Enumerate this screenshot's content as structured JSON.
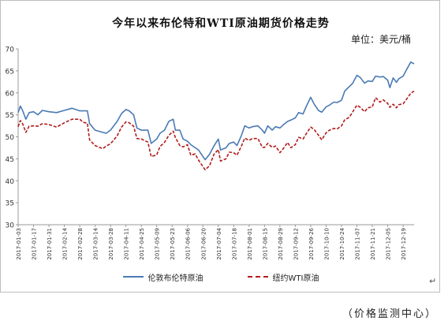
{
  "chart_data": {
    "type": "line",
    "title": "今年以来布伦特和WTI原油期货价格走势",
    "unit": "单位：美元/桶",
    "ylim": [
      30,
      70
    ],
    "yticks": [
      30,
      35,
      40,
      45,
      50,
      55,
      60,
      65,
      70
    ],
    "xlim": [
      "2017-01-03",
      "2017-12-29"
    ],
    "xticks": [
      "2017-01-03",
      "2017-01-17",
      "2017-01-31",
      "2017-02-14",
      "2017-02-28",
      "2017-03-14",
      "2017-03-28",
      "2017-04-11",
      "2017-04-25",
      "2017-05-09",
      "2017-05-23",
      "2017-06-06",
      "2017-06-20",
      "2017-07-04",
      "2017-07-18",
      "2017-08-01",
      "2017-08-15",
      "2017-08-29",
      "2017-09-12",
      "2017-09-26",
      "2017-10-10",
      "2017-10-24",
      "2017-11-07",
      "2017-11-21",
      "2017-12-05",
      "2017-12-19"
    ],
    "legend_position": "bottom",
    "series": [
      {
        "name": "伦敦布伦特原油",
        "color": "#4a7ab5",
        "style": "solid",
        "points": [
          [
            "2017-01-03",
            55.5
          ],
          [
            "2017-01-05",
            57.0
          ],
          [
            "2017-01-07",
            56.0
          ],
          [
            "2017-01-10",
            54.0
          ],
          [
            "2017-01-13",
            55.5
          ],
          [
            "2017-01-17",
            55.7
          ],
          [
            "2017-01-21",
            55.0
          ],
          [
            "2017-01-25",
            56.0
          ],
          [
            "2017-01-31",
            55.7
          ],
          [
            "2017-02-07",
            55.5
          ],
          [
            "2017-02-14",
            56.0
          ],
          [
            "2017-02-21",
            56.5
          ],
          [
            "2017-02-28",
            55.9
          ],
          [
            "2017-03-03",
            55.9
          ],
          [
            "2017-03-07",
            55.9
          ],
          [
            "2017-03-09",
            53.0
          ],
          [
            "2017-03-14",
            51.5
          ],
          [
            "2017-03-21",
            51.0
          ],
          [
            "2017-03-24",
            50.8
          ],
          [
            "2017-03-28",
            51.5
          ],
          [
            "2017-04-03",
            53.5
          ],
          [
            "2017-04-07",
            55.3
          ],
          [
            "2017-04-11",
            56.2
          ],
          [
            "2017-04-14",
            55.9
          ],
          [
            "2017-04-18",
            55.0
          ],
          [
            "2017-04-21",
            52.0
          ],
          [
            "2017-04-25",
            51.5
          ],
          [
            "2017-05-01",
            51.5
          ],
          [
            "2017-05-04",
            48.5
          ],
          [
            "2017-05-09",
            49.5
          ],
          [
            "2017-05-12",
            50.8
          ],
          [
            "2017-05-16",
            51.5
          ],
          [
            "2017-05-20",
            53.5
          ],
          [
            "2017-05-24",
            54.0
          ],
          [
            "2017-05-26",
            51.5
          ],
          [
            "2017-05-30",
            51.5
          ],
          [
            "2017-06-02",
            49.5
          ],
          [
            "2017-06-06",
            49.0
          ],
          [
            "2017-06-09",
            48.2
          ],
          [
            "2017-06-13",
            47.5
          ],
          [
            "2017-06-16",
            47.0
          ],
          [
            "2017-06-20",
            45.5
          ],
          [
            "2017-06-22",
            44.8
          ],
          [
            "2017-06-26",
            46.0
          ],
          [
            "2017-06-30",
            47.9
          ],
          [
            "2017-07-04",
            49.5
          ],
          [
            "2017-07-06",
            47.0
          ],
          [
            "2017-07-11",
            47.5
          ],
          [
            "2017-07-14",
            48.5
          ],
          [
            "2017-07-18",
            48.8
          ],
          [
            "2017-07-21",
            48.0
          ],
          [
            "2017-07-25",
            50.3
          ],
          [
            "2017-07-28",
            52.5
          ],
          [
            "2017-08-01",
            52.0
          ],
          [
            "2017-08-04",
            52.3
          ],
          [
            "2017-08-09",
            52.5
          ],
          [
            "2017-08-13",
            51.5
          ],
          [
            "2017-08-15",
            50.8
          ],
          [
            "2017-08-18",
            52.5
          ],
          [
            "2017-08-22",
            51.5
          ],
          [
            "2017-08-25",
            52.3
          ],
          [
            "2017-08-29",
            52.0
          ],
          [
            "2017-09-01",
            52.7
          ],
          [
            "2017-09-05",
            53.5
          ],
          [
            "2017-09-08",
            53.8
          ],
          [
            "2017-09-12",
            54.3
          ],
          [
            "2017-09-15",
            55.5
          ],
          [
            "2017-09-19",
            55.2
          ],
          [
            "2017-09-22",
            56.9
          ],
          [
            "2017-09-26",
            59.0
          ],
          [
            "2017-09-29",
            57.5
          ],
          [
            "2017-10-03",
            56.0
          ],
          [
            "2017-10-06",
            55.6
          ],
          [
            "2017-10-10",
            56.8
          ],
          [
            "2017-10-13",
            57.2
          ],
          [
            "2017-10-17",
            57.9
          ],
          [
            "2017-10-20",
            57.8
          ],
          [
            "2017-10-24",
            58.3
          ],
          [
            "2017-10-27",
            60.4
          ],
          [
            "2017-10-31",
            61.4
          ],
          [
            "2017-11-03",
            62.1
          ],
          [
            "2017-11-07",
            64.0
          ],
          [
            "2017-11-10",
            63.5
          ],
          [
            "2017-11-14",
            62.2
          ],
          [
            "2017-11-17",
            62.7
          ],
          [
            "2017-11-21",
            62.6
          ],
          [
            "2017-11-24",
            63.8
          ],
          [
            "2017-11-28",
            63.6
          ],
          [
            "2017-12-01",
            63.7
          ],
          [
            "2017-12-05",
            62.9
          ],
          [
            "2017-12-07",
            61.2
          ],
          [
            "2017-12-10",
            63.4
          ],
          [
            "2017-12-13",
            62.4
          ],
          [
            "2017-12-15",
            63.2
          ],
          [
            "2017-12-19",
            63.8
          ],
          [
            "2017-12-22",
            65.2
          ],
          [
            "2017-12-26",
            67.0
          ],
          [
            "2017-12-29",
            66.6
          ]
        ]
      },
      {
        "name": "纽约WTI原油",
        "color": "#b11c1c",
        "style": "dashed",
        "points": [
          [
            "2017-01-03",
            52.3
          ],
          [
            "2017-01-05",
            53.7
          ],
          [
            "2017-01-07",
            53.0
          ],
          [
            "2017-01-10",
            51.0
          ],
          [
            "2017-01-13",
            52.4
          ],
          [
            "2017-01-17",
            52.5
          ],
          [
            "2017-01-21",
            52.4
          ],
          [
            "2017-01-25",
            53.0
          ],
          [
            "2017-01-31",
            52.8
          ],
          [
            "2017-02-07",
            52.2
          ],
          [
            "2017-02-14",
            53.2
          ],
          [
            "2017-02-21",
            54.0
          ],
          [
            "2017-02-28",
            54.0
          ],
          [
            "2017-03-03",
            53.3
          ],
          [
            "2017-03-07",
            53.1
          ],
          [
            "2017-03-09",
            49.3
          ],
          [
            "2017-03-14",
            48.0
          ],
          [
            "2017-03-21",
            47.3
          ],
          [
            "2017-03-24",
            47.9
          ],
          [
            "2017-03-28",
            48.4
          ],
          [
            "2017-04-03",
            50.2
          ],
          [
            "2017-04-07",
            52.2
          ],
          [
            "2017-04-11",
            53.4
          ],
          [
            "2017-04-14",
            53.2
          ],
          [
            "2017-04-18",
            52.4
          ],
          [
            "2017-04-21",
            49.6
          ],
          [
            "2017-04-25",
            49.5
          ],
          [
            "2017-05-01",
            48.8
          ],
          [
            "2017-05-04",
            45.5
          ],
          [
            "2017-05-09",
            45.9
          ],
          [
            "2017-05-12",
            47.8
          ],
          [
            "2017-05-16",
            48.7
          ],
          [
            "2017-05-20",
            50.3
          ],
          [
            "2017-05-24",
            51.3
          ],
          [
            "2017-05-26",
            49.8
          ],
          [
            "2017-05-30",
            48.0
          ],
          [
            "2017-06-02",
            47.7
          ],
          [
            "2017-06-06",
            48.2
          ],
          [
            "2017-06-09",
            45.8
          ],
          [
            "2017-06-13",
            46.1
          ],
          [
            "2017-06-16",
            44.7
          ],
          [
            "2017-06-20",
            43.2
          ],
          [
            "2017-06-22",
            42.5
          ],
          [
            "2017-06-26",
            43.4
          ],
          [
            "2017-06-30",
            46.0
          ],
          [
            "2017-07-04",
            47.1
          ],
          [
            "2017-07-06",
            44.5
          ],
          [
            "2017-07-11",
            45.0
          ],
          [
            "2017-07-14",
            46.5
          ],
          [
            "2017-07-18",
            46.4
          ],
          [
            "2017-07-21",
            45.8
          ],
          [
            "2017-07-25",
            47.9
          ],
          [
            "2017-07-28",
            49.7
          ],
          [
            "2017-08-01",
            49.2
          ],
          [
            "2017-08-04",
            49.6
          ],
          [
            "2017-08-09",
            49.6
          ],
          [
            "2017-08-13",
            47.6
          ],
          [
            "2017-08-15",
            47.6
          ],
          [
            "2017-08-18",
            48.5
          ],
          [
            "2017-08-22",
            47.6
          ],
          [
            "2017-08-25",
            47.9
          ],
          [
            "2017-08-29",
            46.4
          ],
          [
            "2017-09-01",
            47.3
          ],
          [
            "2017-09-05",
            48.7
          ],
          [
            "2017-09-08",
            47.5
          ],
          [
            "2017-09-12",
            48.2
          ],
          [
            "2017-09-15",
            49.9
          ],
          [
            "2017-09-19",
            49.5
          ],
          [
            "2017-09-22",
            50.7
          ],
          [
            "2017-09-26",
            52.2
          ],
          [
            "2017-09-29",
            51.7
          ],
          [
            "2017-10-03",
            50.4
          ],
          [
            "2017-10-06",
            49.3
          ],
          [
            "2017-10-10",
            50.9
          ],
          [
            "2017-10-13",
            51.5
          ],
          [
            "2017-10-17",
            51.9
          ],
          [
            "2017-10-20",
            51.8
          ],
          [
            "2017-10-24",
            52.5
          ],
          [
            "2017-10-27",
            53.9
          ],
          [
            "2017-10-31",
            54.4
          ],
          [
            "2017-11-03",
            55.6
          ],
          [
            "2017-11-07",
            57.2
          ],
          [
            "2017-11-10",
            56.7
          ],
          [
            "2017-11-14",
            55.7
          ],
          [
            "2017-11-17",
            56.6
          ],
          [
            "2017-11-21",
            56.8
          ],
          [
            "2017-11-24",
            58.9
          ],
          [
            "2017-11-28",
            57.9
          ],
          [
            "2017-12-01",
            58.4
          ],
          [
            "2017-12-05",
            57.6
          ],
          [
            "2017-12-07",
            56.7
          ],
          [
            "2017-12-10",
            57.4
          ],
          [
            "2017-12-13",
            56.6
          ],
          [
            "2017-12-15",
            57.3
          ],
          [
            "2017-12-19",
            57.5
          ],
          [
            "2017-12-22",
            58.5
          ],
          [
            "2017-12-26",
            59.9
          ],
          [
            "2017-12-29",
            60.4
          ]
        ]
      }
    ]
  },
  "footer": {
    "source": "（价格监测中心）",
    "return_mark": "↵"
  }
}
